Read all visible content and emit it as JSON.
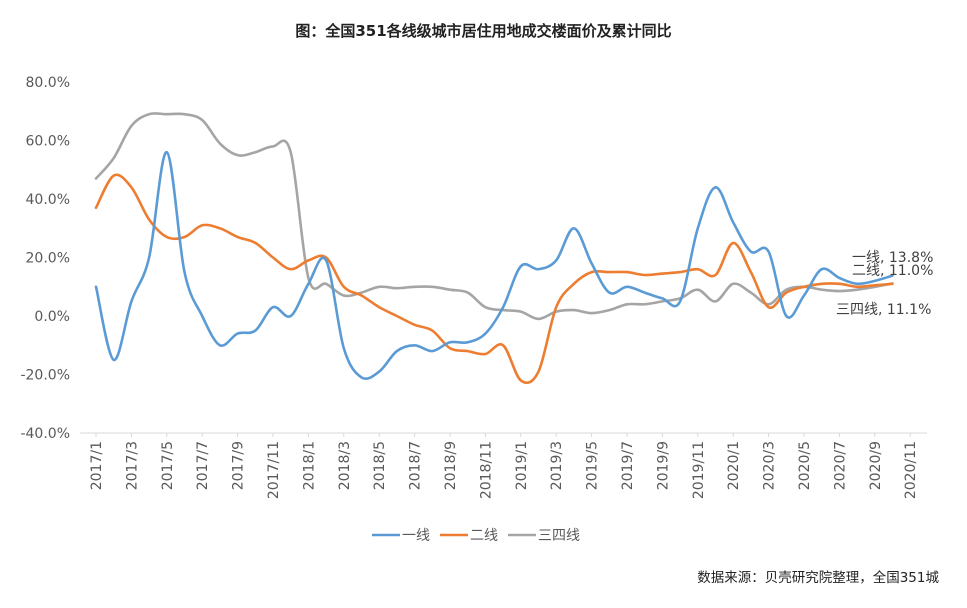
{
  "chart_data": {
    "type": "line",
    "title": "图：全国351各线级城市居住用地成交楼面价及累计同比",
    "source": "数据来源：贝壳研究院整理，全国351城",
    "ylim": [
      -40,
      80
    ],
    "ytick_values": [
      -40,
      -20,
      0,
      20,
      40,
      60,
      80
    ],
    "ytick_labels": [
      "-40.0%",
      "-20.0%",
      "0.0%",
      "20.0%",
      "40.0%",
      "60.0%",
      "80.0%"
    ],
    "xtick_labels": [
      "2017/1",
      "2017/3",
      "2017/5",
      "2017/7",
      "2017/9",
      "2017/11",
      "2018/1",
      "2018/3",
      "2018/5",
      "2018/7",
      "2018/9",
      "2018/11",
      "2019/1",
      "2019/3",
      "2019/5",
      "2019/7",
      "2019/9",
      "2019/11",
      "2020/1",
      "2020/3",
      "2020/5",
      "2020/7",
      "2020/9",
      "2020/11"
    ],
    "months_count": 48,
    "series": [
      {
        "name": "一线",
        "color": "#5B9BD5",
        "end_label": "一线, 13.8%",
        "values": [
          10,
          -15,
          5,
          20,
          56,
          15,
          0,
          -10,
          -6,
          -5,
          3,
          0,
          11,
          19,
          -11,
          -21,
          -19,
          -12,
          -10,
          -12,
          -9,
          -9,
          -6,
          3,
          17,
          16,
          19,
          30,
          18,
          8,
          10,
          8,
          6,
          5,
          30,
          44,
          32,
          22,
          22,
          0,
          7,
          16,
          13,
          11,
          12,
          13.8
        ]
      },
      {
        "name": "二线",
        "color": "#ED7D31",
        "end_label": "二线, 11.0%",
        "values": [
          37,
          48,
          44,
          33,
          27,
          27,
          31,
          30,
          27,
          25,
          20,
          16,
          19,
          20,
          10,
          7,
          3,
          0,
          -3,
          -5,
          -11,
          -12,
          -13,
          -10,
          -22,
          -19,
          3,
          11,
          15,
          15,
          15,
          14,
          14.5,
          15,
          16,
          14,
          25,
          15,
          3,
          8,
          10,
          11,
          11,
          10,
          10.5,
          11.0
        ]
      },
      {
        "name": "三四线",
        "color": "#A5A5A5",
        "end_label": "三四线, 11.1%",
        "values": [
          47,
          54,
          65,
          69,
          69,
          69,
          67,
          59,
          55,
          56,
          58,
          56,
          13,
          11,
          7,
          8,
          10,
          9.5,
          10,
          10,
          9,
          8,
          3,
          2,
          1.5,
          -1,
          1.5,
          2,
          1,
          2,
          4,
          4,
          5,
          6,
          9,
          5,
          11,
          8,
          4,
          9,
          10,
          9,
          8.5,
          9,
          10,
          11.1
        ]
      }
    ]
  }
}
